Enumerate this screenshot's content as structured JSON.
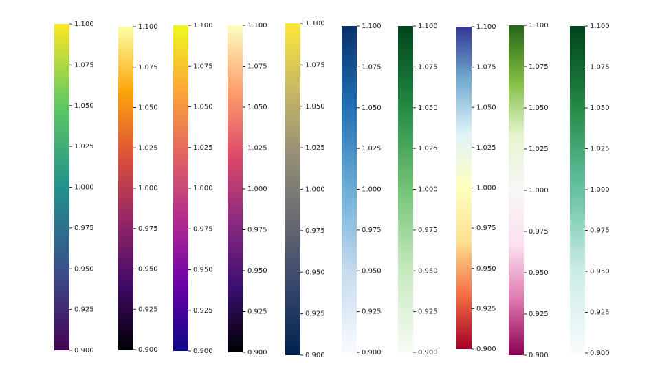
{
  "chart_data": [
    {
      "type": "colorbar",
      "ylim": [
        0.9,
        1.1
      ],
      "colors": [
        "#440154",
        "#3b528b",
        "#21918c",
        "#5ec962",
        "#fde725"
      ],
      "yticks": [
        {
          "value": 0.9,
          "label": "0.900"
        },
        {
          "value": 0.925,
          "label": "0.925"
        },
        {
          "value": 0.95,
          "label": "0.950"
        },
        {
          "value": 0.975,
          "label": "0.975"
        },
        {
          "value": 1.0,
          "label": "1.000"
        },
        {
          "value": 1.025,
          "label": "1.025"
        },
        {
          "value": 1.05,
          "label": "1.050"
        },
        {
          "value": 1.075,
          "label": "1.075"
        },
        {
          "value": 1.1,
          "label": "1.100"
        }
      ]
    },
    {
      "type": "colorbar",
      "ylim": [
        0.9,
        1.1
      ],
      "colors": [
        "#000004",
        "#420a68",
        "#932667",
        "#dd513a",
        "#fca50a",
        "#fcffa4"
      ],
      "yticks": [
        {
          "value": 0.9,
          "label": "0.900"
        },
        {
          "value": 0.925,
          "label": "0.925"
        },
        {
          "value": 0.95,
          "label": "0.950"
        },
        {
          "value": 0.975,
          "label": "0.975"
        },
        {
          "value": 1.0,
          "label": "1.000"
        },
        {
          "value": 1.025,
          "label": "1.025"
        },
        {
          "value": 1.05,
          "label": "1.050"
        },
        {
          "value": 1.075,
          "label": "1.075"
        },
        {
          "value": 1.1,
          "label": "1.100"
        }
      ]
    },
    {
      "type": "colorbar",
      "ylim": [
        0.9,
        1.1
      ],
      "colors": [
        "#0d0887",
        "#6a00a8",
        "#b12a90",
        "#e16462",
        "#fca636",
        "#f0f921"
      ],
      "yticks": [
        {
          "value": 0.9,
          "label": "0.900"
        },
        {
          "value": 0.925,
          "label": "0.925"
        },
        {
          "value": 0.95,
          "label": "0.950"
        },
        {
          "value": 0.975,
          "label": "0.975"
        },
        {
          "value": 1.0,
          "label": "1.000"
        },
        {
          "value": 1.025,
          "label": "1.025"
        },
        {
          "value": 1.05,
          "label": "1.050"
        },
        {
          "value": 1.075,
          "label": "1.075"
        },
        {
          "value": 1.1,
          "label": "1.100"
        }
      ]
    },
    {
      "type": "colorbar",
      "ylim": [
        0.9,
        1.1
      ],
      "colors": [
        "#000004",
        "#3b0f70",
        "#8c2981",
        "#de4968",
        "#fe9f6d",
        "#fcfdbf"
      ],
      "yticks": [
        {
          "value": 0.9,
          "label": "0.900"
        },
        {
          "value": 0.925,
          "label": "0.925"
        },
        {
          "value": 0.95,
          "label": "0.950"
        },
        {
          "value": 0.975,
          "label": "0.975"
        },
        {
          "value": 1.0,
          "label": "1.000"
        },
        {
          "value": 1.025,
          "label": "1.025"
        },
        {
          "value": 1.05,
          "label": "1.050"
        },
        {
          "value": 1.075,
          "label": "1.075"
        },
        {
          "value": 1.1,
          "label": "1.100"
        }
      ]
    },
    {
      "type": "colorbar",
      "ylim": [
        0.9,
        1.1
      ],
      "colors": [
        "#00224e",
        "#35456c",
        "#666970",
        "#948e77",
        "#c8b866",
        "#fee838"
      ],
      "yticks": [
        {
          "value": 0.9,
          "label": "0.900"
        },
        {
          "value": 0.925,
          "label": "0.925"
        },
        {
          "value": 0.95,
          "label": "0.950"
        },
        {
          "value": 0.975,
          "label": "0.975"
        },
        {
          "value": 1.0,
          "label": "1.000"
        },
        {
          "value": 1.025,
          "label": "1.025"
        },
        {
          "value": 1.05,
          "label": "1.050"
        },
        {
          "value": 1.075,
          "label": "1.075"
        },
        {
          "value": 1.1,
          "label": "1.100"
        }
      ]
    },
    {
      "type": "colorbar",
      "ylim": [
        0.9,
        1.1
      ],
      "colors": [
        "#f7fbff",
        "#c6dbef",
        "#6baed6",
        "#2171b5",
        "#08306b"
      ],
      "yticks": [
        {
          "value": 0.9,
          "label": "0.900"
        },
        {
          "value": 0.925,
          "label": "0.925"
        },
        {
          "value": 0.95,
          "label": "0.950"
        },
        {
          "value": 0.975,
          "label": "0.975"
        },
        {
          "value": 1.0,
          "label": "1.000"
        },
        {
          "value": 1.025,
          "label": "1.025"
        },
        {
          "value": 1.05,
          "label": "1.050"
        },
        {
          "value": 1.075,
          "label": "1.075"
        },
        {
          "value": 1.1,
          "label": "1.100"
        }
      ]
    },
    {
      "type": "colorbar",
      "ylim": [
        0.9,
        1.1
      ],
      "colors": [
        "#f7fcf5",
        "#c7e9c0",
        "#74c476",
        "#238b45",
        "#00441b"
      ],
      "yticks": [
        {
          "value": 0.9,
          "label": "0.900"
        },
        {
          "value": 0.925,
          "label": "0.925"
        },
        {
          "value": 0.95,
          "label": "0.950"
        },
        {
          "value": 0.975,
          "label": "0.975"
        },
        {
          "value": 1.0,
          "label": "1.000"
        },
        {
          "value": 1.025,
          "label": "1.025"
        },
        {
          "value": 1.05,
          "label": "1.050"
        },
        {
          "value": 1.075,
          "label": "1.075"
        },
        {
          "value": 1.1,
          "label": "1.100"
        }
      ]
    },
    {
      "type": "colorbar",
      "ylim": [
        0.9,
        1.1
      ],
      "colors": [
        "#a50026",
        "#f46d43",
        "#fee090",
        "#ffffbf",
        "#e0f3f8",
        "#74add1",
        "#313695"
      ],
      "yticks": [
        {
          "value": 0.9,
          "label": "0.900"
        },
        {
          "value": 0.925,
          "label": "0.925"
        },
        {
          "value": 0.95,
          "label": "0.950"
        },
        {
          "value": 0.975,
          "label": "0.975"
        },
        {
          "value": 1.0,
          "label": "1.000"
        },
        {
          "value": 1.025,
          "label": "1.025"
        },
        {
          "value": 1.05,
          "label": "1.050"
        },
        {
          "value": 1.075,
          "label": "1.075"
        },
        {
          "value": 1.1,
          "label": "1.100"
        }
      ]
    },
    {
      "type": "colorbar",
      "ylim": [
        0.9,
        1.1
      ],
      "colors": [
        "#8e0152",
        "#de77ae",
        "#fde0ef",
        "#f7f7f7",
        "#e6f5d0",
        "#7fbc41",
        "#276419"
      ],
      "yticks": [
        {
          "value": 0.9,
          "label": "0.900"
        },
        {
          "value": 0.925,
          "label": "0.925"
        },
        {
          "value": 0.95,
          "label": "0.950"
        },
        {
          "value": 0.975,
          "label": "0.975"
        },
        {
          "value": 1.0,
          "label": "1.000"
        },
        {
          "value": 1.025,
          "label": "1.025"
        },
        {
          "value": 1.05,
          "label": "1.050"
        },
        {
          "value": 1.075,
          "label": "1.075"
        },
        {
          "value": 1.1,
          "label": "1.100"
        }
      ]
    },
    {
      "type": "colorbar",
      "ylim": [
        0.9,
        1.1
      ],
      "colors": [
        "#f7fcfd",
        "#ccece6",
        "#66c2a4",
        "#238b45",
        "#00441b"
      ],
      "yticks": [
        {
          "value": 0.9,
          "label": "0.900"
        },
        {
          "value": 0.925,
          "label": "0.925"
        },
        {
          "value": 0.95,
          "label": "0.950"
        },
        {
          "value": 0.975,
          "label": "0.975"
        },
        {
          "value": 1.0,
          "label": "1.000"
        },
        {
          "value": 1.025,
          "label": "1.025"
        },
        {
          "value": 1.05,
          "label": "1.050"
        },
        {
          "value": 1.075,
          "label": "1.075"
        },
        {
          "value": 1.1,
          "label": "1.100"
        }
      ]
    }
  ]
}
